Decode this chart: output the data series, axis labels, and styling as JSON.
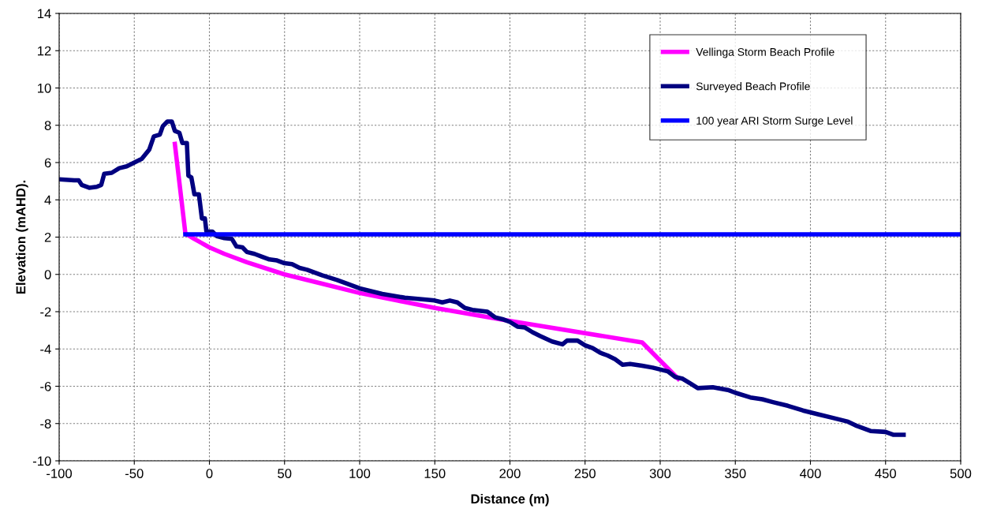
{
  "chart_data": {
    "type": "line",
    "xlabel": "Distance (m)",
    "ylabel": "Elevation (mAHD).",
    "xlim": [
      -100,
      500
    ],
    "xticks": [
      -100,
      -50,
      0,
      50,
      100,
      150,
      200,
      250,
      300,
      350,
      400,
      450,
      500
    ],
    "ylim": [
      -10,
      14
    ],
    "yticks": [
      -10,
      -8,
      -6,
      -4,
      -2,
      0,
      2,
      4,
      6,
      8,
      10,
      12,
      14
    ],
    "grid": true,
    "legend": "top right",
    "marker": "none",
    "line_style": "solid",
    "series": [
      {
        "name": "Vellinga Storm Beach Profile",
        "color": "#ff00ff",
        "x": [
          -23,
          -16,
          -10,
          0,
          10,
          25,
          50,
          75,
          100,
          125,
          150,
          175,
          200,
          288,
          312
        ],
        "values": [
          7.0,
          2.2,
          1.9,
          1.45,
          1.1,
          0.65,
          0.0,
          -0.5,
          -1.0,
          -1.4,
          -1.8,
          -2.15,
          -2.5,
          -3.65,
          -5.6
        ]
      },
      {
        "name": "Surveyed Beach Profile",
        "color": "#000080",
        "x": [
          -100,
          -90,
          -87,
          -85,
          -80,
          -75,
          -72,
          -70,
          -65,
          -60,
          -55,
          -50,
          -45,
          -40,
          -37,
          -33,
          -31,
          -28,
          -25,
          -23,
          -20,
          -18,
          -15,
          -14,
          -12,
          -10,
          -7,
          -5,
          -3,
          -2,
          2,
          5,
          10,
          15,
          18,
          22,
          25,
          30,
          35,
          40,
          45,
          50,
          55,
          60,
          65,
          70,
          75,
          85,
          100,
          115,
          130,
          150,
          155,
          160,
          165,
          170,
          175,
          185,
          190,
          195,
          200,
          205,
          210,
          215,
          220,
          228,
          235,
          238,
          245,
          250,
          255,
          260,
          265,
          270,
          275,
          280,
          288,
          295,
          305,
          310,
          315,
          320,
          325,
          335,
          345,
          350,
          360,
          368,
          375,
          385,
          395,
          405,
          415,
          425,
          430,
          440,
          450,
          455,
          462
        ],
        "values": [
          5.1,
          5.05,
          5.05,
          4.8,
          4.65,
          4.7,
          4.8,
          5.4,
          5.45,
          5.7,
          5.8,
          6.0,
          6.2,
          6.7,
          7.4,
          7.5,
          7.95,
          8.2,
          8.2,
          7.7,
          7.6,
          7.05,
          7.05,
          5.3,
          5.2,
          4.3,
          4.3,
          3.0,
          3.0,
          2.3,
          2.3,
          2.05,
          1.95,
          1.9,
          1.5,
          1.45,
          1.2,
          1.1,
          0.95,
          0.8,
          0.75,
          0.6,
          0.55,
          0.35,
          0.25,
          0.1,
          -0.05,
          -0.3,
          -0.75,
          -1.05,
          -1.25,
          -1.4,
          -1.5,
          -1.4,
          -1.5,
          -1.8,
          -1.9,
          -2.0,
          -2.3,
          -2.4,
          -2.55,
          -2.8,
          -2.85,
          -3.1,
          -3.3,
          -3.6,
          -3.75,
          -3.55,
          -3.55,
          -3.8,
          -3.95,
          -4.2,
          -4.35,
          -4.55,
          -4.85,
          -4.8,
          -4.9,
          -5.0,
          -5.2,
          -5.5,
          -5.6,
          -5.85,
          -6.1,
          -6.05,
          -6.2,
          -6.35,
          -6.6,
          -6.7,
          -6.85,
          -7.05,
          -7.3,
          -7.5,
          -7.7,
          -7.9,
          -8.1,
          -8.4,
          -8.45,
          -8.6,
          -8.6
        ]
      },
      {
        "name": "100 year ARI Storm Surge Level",
        "color": "#0000ff",
        "x": [
          -16,
          500
        ],
        "values": [
          2.15,
          2.15
        ]
      }
    ]
  }
}
